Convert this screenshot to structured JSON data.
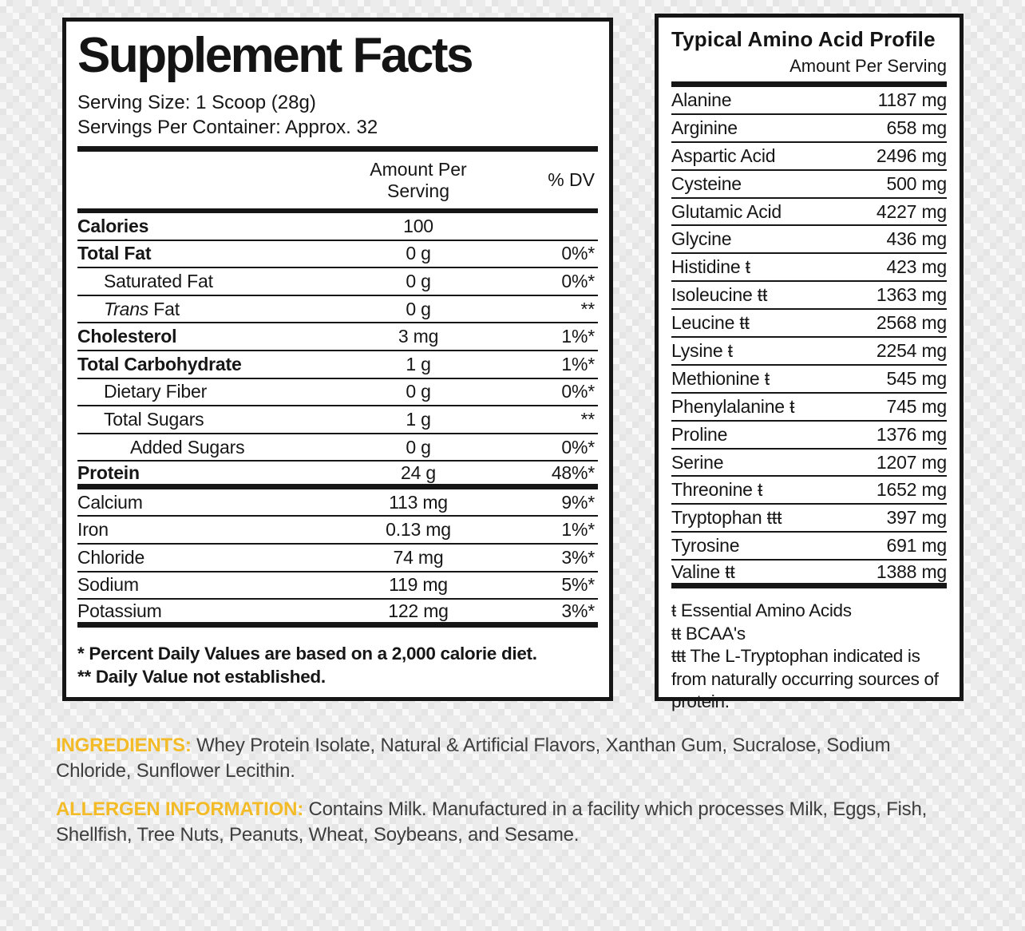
{
  "colors": {
    "accent_yellow": "#F2BB27",
    "ink": "#161616",
    "panel_bg": "#FFFFFF",
    "checker_gray": "#E8E8E8"
  },
  "supplement_facts": {
    "title": "Supplement Facts",
    "serving_size": "Serving Size: 1 Scoop (28g)",
    "servings_per_container": "Servings Per Container: Approx. 32",
    "columns": {
      "amount": "Amount Per Serving",
      "dv": "% DV"
    },
    "rows": [
      {
        "label": "Calories",
        "amount": "100",
        "dv": "",
        "bold": true,
        "indent": 0
      },
      {
        "label": "Total Fat",
        "amount": "0 g",
        "dv": "0%*",
        "bold": true,
        "indent": 0
      },
      {
        "label": "Saturated Fat",
        "amount": "0 g",
        "dv": "0%*",
        "indent": 1
      },
      {
        "italic_prefix": "Trans",
        "label": " Fat",
        "amount": "0 g",
        "dv": "**",
        "indent": 1
      },
      {
        "label": "Cholesterol",
        "amount": "3 mg",
        "dv": "1%*",
        "bold": true,
        "indent": 0
      },
      {
        "label": "Total Carbohydrate",
        "amount": "1 g",
        "dv": "1%*",
        "bold": true,
        "indent": 0
      },
      {
        "label": "Dietary Fiber",
        "amount": "0 g",
        "dv": "0%*",
        "indent": 1
      },
      {
        "label": "Total Sugars",
        "amount": "1 g",
        "dv": "**",
        "indent": 1
      },
      {
        "label": "Added Sugars",
        "amount": "0 g",
        "dv": "0%*",
        "indent": 2
      },
      {
        "label": "Protein",
        "amount": "24 g",
        "dv": "48%*",
        "bold": true,
        "indent": 0,
        "thick_after": true
      },
      {
        "label": "Calcium",
        "amount": "113 mg",
        "dv": "9%*",
        "indent": 0
      },
      {
        "label": "Iron",
        "amount": "0.13 mg",
        "dv": "1%*",
        "indent": 0
      },
      {
        "label": "Chloride",
        "amount": "74 mg",
        "dv": "3%*",
        "indent": 0
      },
      {
        "label": "Sodium",
        "amount": "119 mg",
        "dv": "5%*",
        "indent": 0
      },
      {
        "label": "Potassium",
        "amount": "122 mg",
        "dv": "3%*",
        "indent": 0,
        "thick_after": true
      }
    ],
    "footnotes": [
      "* Percent Daily Values are based on a 2,000 calorie diet.",
      "** Daily Value not established."
    ]
  },
  "amino_profile": {
    "title": "Typical Amino Acid Profile",
    "subtitle": "Amount Per Serving",
    "rows": [
      {
        "name": "Alanine",
        "amount": "1187 mg"
      },
      {
        "name": "Arginine",
        "amount": "658 mg"
      },
      {
        "name": "Aspartic Acid",
        "amount": "2496 mg"
      },
      {
        "name": "Cysteine",
        "amount": "500 mg"
      },
      {
        "name": "Glutamic Acid",
        "amount": "4227 mg"
      },
      {
        "name": "Glycine",
        "amount": "436 mg"
      },
      {
        "name": "Histidine ŧ",
        "amount": "423 mg"
      },
      {
        "name": "Isoleucine ŧŧ",
        "amount": "1363 mg"
      },
      {
        "name": "Leucine ŧŧ",
        "amount": "2568 mg"
      },
      {
        "name": "Lysine ŧ",
        "amount": "2254 mg"
      },
      {
        "name": "Methionine ŧ",
        "amount": "545 mg"
      },
      {
        "name": "Phenylalanine ŧ",
        "amount": "745 mg"
      },
      {
        "name": "Proline",
        "amount": "1376 mg"
      },
      {
        "name": "Serine",
        "amount": "1207 mg"
      },
      {
        "name": "Threonine ŧ",
        "amount": "1652 mg"
      },
      {
        "name": "Tryptophan ŧŧŧ",
        "amount": "397 mg"
      },
      {
        "name": "Tyrosine",
        "amount": "691 mg"
      },
      {
        "name": "Valine ŧŧ",
        "amount": "1388 mg"
      }
    ],
    "footnotes": [
      "ŧ Essential Amino Acids",
      "ŧŧ BCAA's",
      "ŧŧŧ The L-Tryptophan indicated is from naturally occurring sources of protein."
    ]
  },
  "ingredients": {
    "label": "INGREDIENTS:",
    "text": "Whey Protein Isolate, Natural & Artificial Flavors, Xanthan Gum, Sucralose, Sodium Chloride, Sunflower Lecithin."
  },
  "allergen": {
    "label": "ALLERGEN INFORMATION:",
    "text": "Contains Milk. Manufactured in a facility which processes Milk, Eggs, Fish, Shellfish, Tree Nuts, Peanuts, Wheat, Soybeans, and Sesame."
  }
}
